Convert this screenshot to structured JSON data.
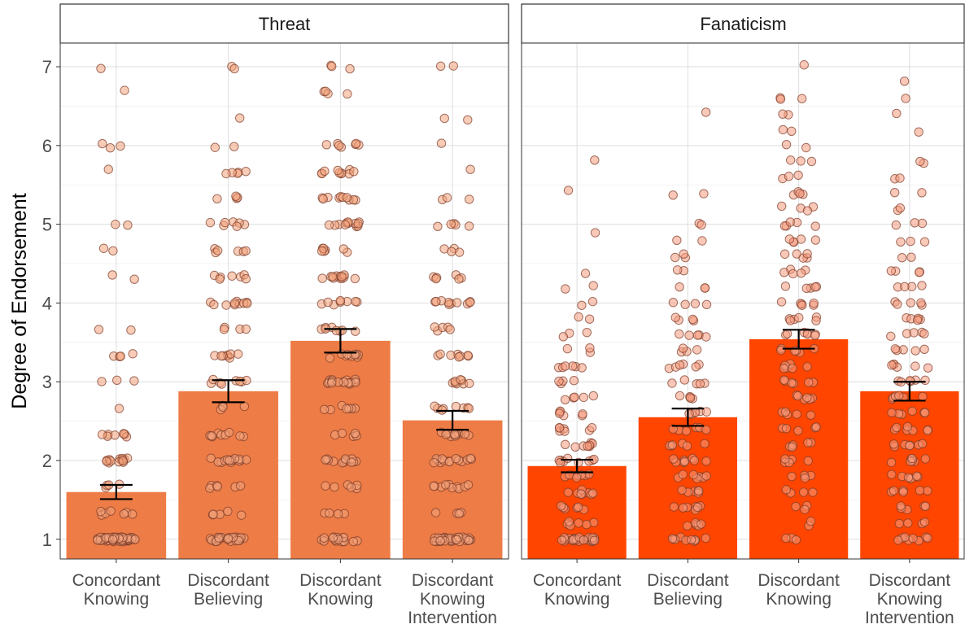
{
  "chart_data": {
    "type": "bar",
    "ylabel": "Degree of Endorsement",
    "xlabel": "",
    "ylim": [
      0.75,
      7.3
    ],
    "yticks": [
      1,
      2,
      3,
      4,
      5,
      6,
      7
    ],
    "grid": true,
    "categories": [
      [
        "Concordant",
        "Knowing"
      ],
      [
        "Discordant",
        "Believing"
      ],
      [
        "Discordant",
        "Knowing"
      ],
      [
        "Discordant",
        "Knowing",
        "Intervention"
      ]
    ],
    "panels": [
      {
        "title": "Threat",
        "bar_color": "#EE7C46",
        "point_fill": "#F2A27C",
        "values": [
          1.6,
          2.88,
          3.52,
          2.51
        ],
        "error": [
          [
            1.51,
            1.69
          ],
          [
            2.74,
            3.02
          ],
          [
            3.37,
            3.67
          ],
          [
            2.39,
            2.63
          ]
        ],
        "points_per_category": [
          {
            "1": 58,
            "1.33": 7,
            "1.67": 4,
            "2": 14,
            "2.33": 8,
            "2.67": 1,
            "3": 3,
            "3.33": 4,
            "3.67": 2,
            "4.33": 2,
            "4.67": 2,
            "5": 2,
            "5.67": 1,
            "6": 3,
            "6.67": 1,
            "7": 1
          },
          {
            "1": 26,
            "1.33": 5,
            "1.67": 6,
            "2": 14,
            "2.33": 9,
            "2.67": 4,
            "3": 8,
            "3.33": 8,
            "3.67": 4,
            "4": 10,
            "4.33": 7,
            "4.67": 6,
            "5": 7,
            "5.33": 4,
            "5.67": 5,
            "6": 2,
            "6.33": 1,
            "7": 2
          },
          {
            "1": 18,
            "1.33": 4,
            "1.67": 6,
            "2": 12,
            "2.33": 5,
            "2.67": 7,
            "3": 16,
            "3.33": 10,
            "3.67": 8,
            "4": 8,
            "4.33": 12,
            "4.67": 7,
            "5": 12,
            "5.33": 10,
            "5.67": 10,
            "6": 7,
            "6.67": 4,
            "7": 3
          },
          {
            "1": 38,
            "1.33": 4,
            "1.67": 10,
            "2": 14,
            "2.33": 12,
            "2.67": 8,
            "3": 8,
            "3.33": 8,
            "3.67": 5,
            "4": 10,
            "4.33": 6,
            "4.67": 4,
            "5": 5,
            "5.33": 3,
            "5.67": 1,
            "6": 1,
            "6.33": 2,
            "7": 2
          }
        ]
      },
      {
        "title": "Fanaticism",
        "bar_color": "#FF4500",
        "point_fill": "#F59A7E",
        "values": [
          1.93,
          2.55,
          3.54,
          2.88
        ],
        "error": [
          [
            1.85,
            2.01
          ],
          [
            2.44,
            2.66
          ],
          [
            3.42,
            3.66
          ],
          [
            2.76,
            3.0
          ]
        ],
        "points_per_category": [
          {
            "1": 26,
            "1.2": 6,
            "1.4": 6,
            "1.6": 8,
            "1.8": 7,
            "2": 9,
            "2.2": 8,
            "2.4": 7,
            "2.6": 6,
            "2.8": 5,
            "3": 4,
            "3.2": 6,
            "3.4": 3,
            "3.6": 3,
            "3.8": 2,
            "4": 2,
            "4.2": 2,
            "4.4": 1,
            "4.9": 1,
            "5.4": 1,
            "5.8": 1
          },
          {
            "1": 10,
            "1.2": 5,
            "1.4": 7,
            "1.6": 6,
            "1.8": 7,
            "2": 8,
            "2.2": 6,
            "2.4": 6,
            "2.6": 6,
            "2.8": 5,
            "3": 5,
            "3.2": 6,
            "3.4": 4,
            "3.6": 5,
            "3.8": 4,
            "4": 4,
            "4.2": 3,
            "4.4": 2,
            "4.6": 3,
            "4.8": 2,
            "5": 2,
            "5.4": 2,
            "6.4": 1
          },
          {
            "1": 3,
            "1.2": 2,
            "1.4": 3,
            "1.6": 4,
            "1.8": 4,
            "2": 5,
            "2.2": 5,
            "2.4": 5,
            "2.6": 5,
            "2.8": 6,
            "3": 6,
            "3.2": 6,
            "3.4": 6,
            "3.6": 7,
            "3.8": 6,
            "4": 6,
            "4.2": 5,
            "4.4": 5,
            "4.6": 5,
            "4.8": 5,
            "5": 5,
            "5.2": 4,
            "5.4": 4,
            "5.6": 3,
            "5.8": 3,
            "6": 2,
            "6.2": 2,
            "6.4": 2,
            "6.6": 3,
            "7": 1
          },
          {
            "1": 8,
            "1.2": 4,
            "1.4": 5,
            "1.6": 6,
            "1.8": 7,
            "2": 7,
            "2.2": 7,
            "2.4": 7,
            "2.6": 6,
            "2.8": 6,
            "3": 6,
            "3.2": 6,
            "3.4": 5,
            "3.6": 5,
            "3.8": 5,
            "4": 5,
            "4.2": 4,
            "4.4": 4,
            "4.6": 2,
            "4.8": 3,
            "5": 3,
            "5.2": 2,
            "5.4": 2,
            "5.6": 2,
            "5.8": 2,
            "6.2": 1,
            "6.4": 1,
            "6.6": 1,
            "6.8": 1
          }
        ]
      }
    ]
  }
}
